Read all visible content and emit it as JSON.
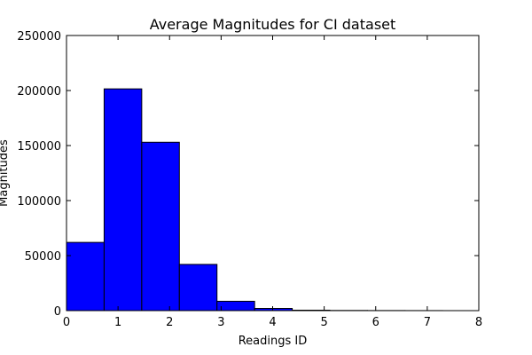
{
  "chart_data": {
    "type": "bar",
    "title": "Average Magnitudes for CI dataset",
    "xlabel": "Readings ID",
    "ylabel": "Magnitudes",
    "xlim": [
      0,
      8
    ],
    "ylim": [
      0,
      250000
    ],
    "x_ticks": [
      "0",
      "1",
      "2",
      "3",
      "4",
      "5",
      "6",
      "7",
      "8"
    ],
    "y_ticks": [
      "0",
      "50000",
      "100000",
      "150000",
      "200000",
      "250000"
    ],
    "bin_edges": [
      0,
      0.73,
      1.46,
      2.19,
      2.92,
      3.65,
      4.38,
      5.11,
      5.84,
      6.57,
      7.3
    ],
    "values": [
      62000,
      201500,
      153000,
      42000,
      8500,
      2000,
      400,
      150,
      80,
      40
    ],
    "bar_color": "#0000ff",
    "edge_color": "#000000",
    "grid": false,
    "legend": "none"
  }
}
